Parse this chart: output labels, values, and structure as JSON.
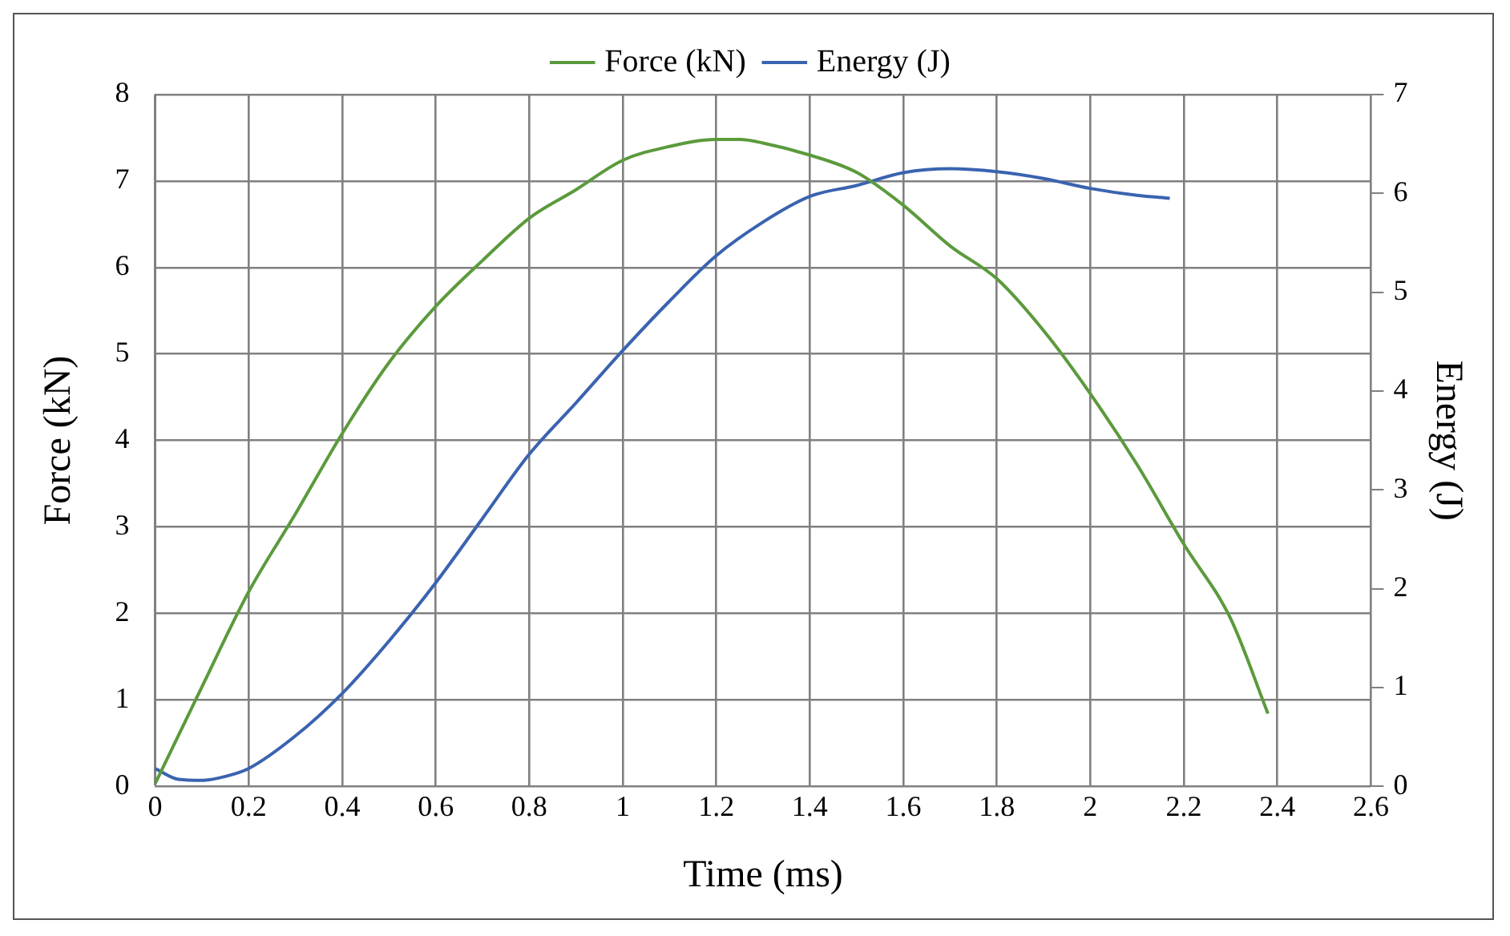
{
  "chart_data": {
    "type": "line",
    "xlabel": "Time (ms)",
    "ylabel": "Force (kN)",
    "y2label": "Energy (J)",
    "xlim": [
      0,
      2.6
    ],
    "xticks": [
      0,
      0.2,
      0.4,
      0.6,
      0.8,
      1,
      1.2,
      1.4,
      1.6,
      1.8,
      2,
      2.2,
      2.4,
      2.6
    ],
    "ylim": [
      0,
      8
    ],
    "yticks": [
      0,
      1,
      2,
      3,
      4,
      5,
      6,
      7,
      8
    ],
    "y2lim": [
      0,
      7
    ],
    "y2ticks": [
      0,
      1,
      2,
      3,
      4,
      5,
      6,
      7
    ],
    "grid": true,
    "legend": "top",
    "marker": "none",
    "line_style": "solid",
    "series": [
      {
        "name": "Force (kN)",
        "color": "#5b9a3c",
        "x": [
          0,
          0.1,
          0.2,
          0.3,
          0.4,
          0.5,
          0.6,
          0.7,
          0.8,
          0.9,
          1,
          1.1,
          1.2,
          1.25,
          1.3,
          1.4,
          1.5,
          1.6,
          1.7,
          1.8,
          1.9,
          2,
          2.1,
          2.2,
          2.3,
          2.38
        ],
        "values": [
          0.03,
          1.15,
          2.25,
          3.15,
          4.08,
          4.9,
          5.55,
          6.08,
          6.57,
          6.9,
          7.24,
          7.4,
          7.48,
          7.48,
          7.44,
          7.3,
          7.1,
          6.72,
          6.25,
          5.87,
          5.27,
          4.54,
          3.72,
          2.8,
          1.94,
          0.84
        ]
      },
      {
        "name": "Energy (J)",
        "color": "#3a63b0",
        "axis": "y2",
        "x": [
          0,
          0.05,
          0.1,
          0.15,
          0.2,
          0.3,
          0.4,
          0.5,
          0.6,
          0.7,
          0.8,
          0.9,
          1,
          1.1,
          1.2,
          1.3,
          1.4,
          1.5,
          1.6,
          1.7,
          1.8,
          1.9,
          2,
          2.1,
          2.17
        ],
        "values": [
          0.18,
          0.07,
          0.06,
          0.1,
          0.18,
          0.51,
          0.94,
          1.47,
          2.06,
          2.71,
          3.36,
          3.88,
          4.41,
          4.91,
          5.37,
          5.71,
          5.97,
          6.08,
          6.21,
          6.25,
          6.22,
          6.15,
          6.05,
          5.98,
          5.95
        ]
      }
    ]
  }
}
